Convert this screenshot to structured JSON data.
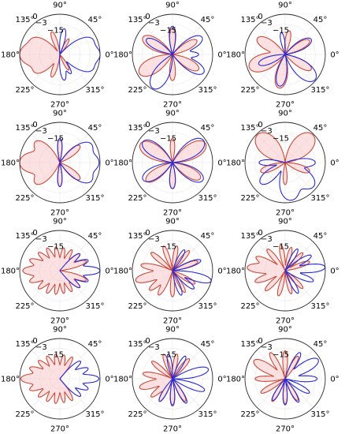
{
  "figure": {
    "angle_tick_labels": [
      "0°",
      "45°",
      "90°",
      "135°",
      "180°",
      "225°",
      "270°",
      "315°"
    ],
    "angle_tick_degrees": [
      0,
      45,
      90,
      135,
      180,
      225,
      270,
      315
    ],
    "radial_tick_labels": [
      "0",
      "−3",
      "−15"
    ],
    "radial_tick_values": [
      0,
      -3,
      -15
    ]
  },
  "colors": {
    "red_series": "#cc4a3a",
    "blue_series": "#2a2ad6",
    "red_fill": "#f7c9c9",
    "axis": "#2b2b2b",
    "grid": "#e6e6e6"
  },
  "chart_data": [
    {
      "type": "polar-line",
      "grid": true,
      "rlim": [
        -40,
        0
      ],
      "series": [
        {
          "color": "red",
          "lobes": [
            [
              180,
              0,
              32
            ],
            [
              215,
              -10,
              22
            ],
            [
              150,
              -10,
              22
            ],
            [
              250,
              -16,
              14
            ],
            [
              110,
              -16,
              14
            ],
            [
              300,
              -22,
              14
            ],
            [
              60,
              -22,
              14
            ]
          ]
        },
        {
          "color": "blue",
          "lobes": [
            [
              0,
              0,
              26
            ],
            [
              335,
              -5,
              20
            ],
            [
              25,
              -5,
              20
            ],
            [
              280,
              -14,
              14
            ],
            [
              80,
              -14,
              14
            ],
            [
              300,
              -18,
              14
            ]
          ]
        }
      ]
    },
    {
      "type": "polar-line",
      "grid": true,
      "rlim": [
        -40,
        0
      ],
      "series": [
        {
          "color": "red",
          "lobes": [
            [
              210,
              -2,
              24
            ],
            [
              150,
              -6,
              22
            ],
            [
              90,
              -14,
              16
            ],
            [
              30,
              -12,
              18
            ],
            [
              330,
              -10,
              20
            ],
            [
              270,
              -14,
              16
            ]
          ]
        },
        {
          "color": "blue",
          "lobes": [
            [
              240,
              -1,
              24
            ],
            [
              330,
              -4,
              20
            ],
            [
              30,
              -6,
              20
            ],
            [
              90,
              -12,
              16
            ],
            [
              150,
              -10,
              18
            ],
            [
              0,
              -14,
              14
            ]
          ]
        }
      ]
    },
    {
      "type": "polar-line",
      "grid": true,
      "rlim": [
        -40,
        0
      ],
      "series": [
        {
          "color": "red",
          "lobes": [
            [
              200,
              -2,
              26
            ],
            [
              150,
              -8,
              22
            ],
            [
              80,
              -16,
              16
            ],
            [
              30,
              -12,
              18
            ],
            [
              330,
              -10,
              18
            ],
            [
              260,
              -6,
              22
            ]
          ]
        },
        {
          "color": "blue",
          "lobes": [
            [
              320,
              -1,
              24
            ],
            [
              30,
              -10,
              20
            ],
            [
              100,
              -18,
              14
            ],
            [
              200,
              -12,
              18
            ],
            [
              260,
              -8,
              20
            ]
          ]
        }
      ]
    },
    {
      "type": "polar-line",
      "grid": true,
      "rlim": [
        -40,
        0
      ],
      "series": [
        {
          "color": "red",
          "lobes": [
            [
              180,
              0,
              30
            ],
            [
              140,
              -8,
              22
            ],
            [
              220,
              -8,
              22
            ],
            [
              90,
              -16,
              14
            ],
            [
              270,
              -16,
              14
            ],
            [
              40,
              -14,
              18
            ],
            [
              320,
              -14,
              18
            ]
          ]
        },
        {
          "color": "blue",
          "lobes": [
            [
              0,
              -1,
              28
            ],
            [
              330,
              -4,
              22
            ],
            [
              30,
              -4,
              22
            ],
            [
              90,
              -16,
              14
            ],
            [
              270,
              -16,
              14
            ]
          ]
        }
      ]
    },
    {
      "type": "polar-line",
      "grid": true,
      "rlim": [
        -40,
        0
      ],
      "series": [
        {
          "color": "red",
          "lobes": [
            [
              150,
              -3,
              24
            ],
            [
              30,
              -2,
              24
            ],
            [
              215,
              -8,
              20
            ],
            [
              330,
              -8,
              20
            ],
            [
              90,
              -16,
              14
            ],
            [
              270,
              -14,
              16
            ]
          ]
        },
        {
          "color": "blue",
          "lobes": [
            [
              35,
              -2,
              24
            ],
            [
              145,
              -4,
              22
            ],
            [
              330,
              -5,
              22
            ],
            [
              210,
              -6,
              22
            ],
            [
              270,
              -14,
              16
            ]
          ]
        }
      ]
    },
    {
      "type": "polar-line",
      "grid": true,
      "rlim": [
        -40,
        0
      ],
      "series": [
        {
          "color": "red",
          "lobes": [
            [
              135,
              -1,
              30
            ],
            [
              45,
              -1,
              30
            ],
            [
              200,
              -14,
              18
            ],
            [
              340,
              -14,
              18
            ],
            [
              270,
              -18,
              14
            ]
          ]
        },
        {
          "color": "blue",
          "lobes": [
            [
              280,
              -2,
              30
            ],
            [
              320,
              -3,
              26
            ],
            [
              220,
              -8,
              22
            ],
            [
              0,
              -10,
              18
            ],
            [
              180,
              -14,
              16
            ]
          ]
        }
      ]
    },
    {
      "type": "polar-line",
      "grid": true,
      "rlim": [
        -40,
        0
      ],
      "series": [
        {
          "color": "red",
          "lobes": [
            [
              180,
              -3,
              14
            ],
            [
              160,
              -8,
              12
            ],
            [
              200,
              -8,
              12
            ],
            [
              140,
              -12,
              12
            ],
            [
              220,
              -12,
              12
            ],
            [
              120,
              -14,
              12
            ],
            [
              240,
              -14,
              12
            ],
            [
              100,
              -16,
              12
            ],
            [
              260,
              -16,
              12
            ],
            [
              80,
              -17,
              12
            ],
            [
              280,
              -17,
              12
            ],
            [
              60,
              -16,
              12
            ],
            [
              300,
              -16,
              12
            ],
            [
              40,
              -14,
              12
            ],
            [
              320,
              -14,
              12
            ],
            [
              20,
              -12,
              12
            ],
            [
              340,
              -12,
              12
            ]
          ]
        },
        {
          "color": "blue",
          "lobes": [
            [
              0,
              0,
              12
            ],
            [
              20,
              -10,
              12
            ],
            [
              340,
              -10,
              12
            ],
            [
              40,
              -14,
              12
            ],
            [
              320,
              -14,
              12
            ]
          ]
        }
      ]
    },
    {
      "type": "polar-line",
      "grid": true,
      "rlim": [
        -40,
        0
      ],
      "series": [
        {
          "color": "red",
          "lobes": [
            [
              195,
              -2,
              14
            ],
            [
              170,
              -8,
              12
            ],
            [
              220,
              -10,
              12
            ],
            [
              140,
              -12,
              12
            ],
            [
              240,
              -12,
              12
            ],
            [
              110,
              -14,
              12
            ],
            [
              270,
              -14,
              12
            ],
            [
              80,
              -15,
              12
            ],
            [
              300,
              -15,
              12
            ],
            [
              50,
              -14,
              12
            ],
            [
              330,
              -14,
              12
            ],
            [
              20,
              -13,
              12
            ]
          ]
        },
        {
          "color": "blue",
          "lobes": [
            [
              345,
              0,
              12
            ],
            [
              20,
              -10,
              12
            ],
            [
              320,
              -12,
              12
            ],
            [
              290,
              -14,
              12
            ],
            [
              60,
              -16,
              12
            ]
          ]
        }
      ]
    },
    {
      "type": "polar-line",
      "grid": true,
      "rlim": [
        -40,
        0
      ],
      "series": [
        {
          "color": "red",
          "lobes": [
            [
              175,
              -2,
              14
            ],
            [
              155,
              -8,
              12
            ],
            [
              200,
              -8,
              12
            ],
            [
              130,
              -12,
              12
            ],
            [
              225,
              -12,
              12
            ],
            [
              100,
              -14,
              12
            ],
            [
              255,
              -14,
              12
            ],
            [
              75,
              -16,
              12
            ],
            [
              285,
              -16,
              12
            ],
            [
              45,
              -15,
              12
            ],
            [
              315,
              -15,
              12
            ],
            [
              20,
              -14,
              12
            ]
          ]
        },
        {
          "color": "blue",
          "lobes": [
            [
              5,
              0,
              12
            ],
            [
              30,
              -10,
              12
            ],
            [
              340,
              -10,
              12
            ],
            [
              300,
              -14,
              12
            ],
            [
              60,
              -15,
              12
            ]
          ]
        }
      ]
    },
    {
      "type": "polar-line",
      "grid": true,
      "rlim": [
        -40,
        0
      ],
      "series": [
        {
          "color": "red",
          "lobes": [
            [
              180,
              -1,
              14
            ],
            [
              160,
              -8,
              12
            ],
            [
              200,
              -8,
              12
            ],
            [
              140,
              -12,
              12
            ],
            [
              220,
              -12,
              12
            ],
            [
              120,
              -14,
              12
            ],
            [
              240,
              -14,
              12
            ],
            [
              100,
              -15,
              12
            ],
            [
              260,
              -15,
              12
            ],
            [
              80,
              -16,
              12
            ],
            [
              280,
              -16,
              12
            ],
            [
              60,
              -15,
              12
            ],
            [
              300,
              -15,
              12
            ]
          ]
        },
        {
          "color": "blue",
          "lobes": [
            [
              0,
              -1,
              12
            ],
            [
              20,
              -10,
              12
            ],
            [
              340,
              -10,
              12
            ],
            [
              40,
              -13,
              12
            ],
            [
              320,
              -13,
              12
            ]
          ]
        }
      ]
    },
    {
      "type": "polar-line",
      "grid": true,
      "rlim": [
        -40,
        0
      ],
      "series": [
        {
          "color": "red",
          "lobes": [
            [
              195,
              -6,
              14
            ],
            [
              170,
              -10,
              12
            ],
            [
              220,
              -12,
              12
            ],
            [
              140,
              -13,
              12
            ],
            [
              240,
              -14,
              12
            ],
            [
              110,
              -14,
              12
            ],
            [
              270,
              -14,
              12
            ],
            [
              80,
              -15,
              12
            ],
            [
              300,
              -14,
              12
            ],
            [
              50,
              -14,
              12
            ]
          ]
        },
        {
          "color": "blue",
          "lobes": [
            [
              15,
              -3,
              14
            ],
            [
              340,
              -6,
              12
            ],
            [
              300,
              -12,
              12
            ],
            [
              270,
              -13,
              12
            ],
            [
              240,
              -14,
              12
            ],
            [
              60,
              -14,
              12
            ],
            [
              100,
              -15,
              12
            ]
          ]
        }
      ]
    },
    {
      "type": "polar-line",
      "grid": true,
      "rlim": [
        -40,
        0
      ],
      "series": [
        {
          "color": "red",
          "lobes": [
            [
              150,
              -4,
              16
            ],
            [
              180,
              -10,
              12
            ],
            [
              120,
              -10,
              12
            ],
            [
              210,
              -12,
              12
            ],
            [
              90,
              -12,
              12
            ],
            [
              240,
              -14,
              12
            ],
            [
              60,
              -14,
              12
            ],
            [
              270,
              -15,
              12
            ],
            [
              300,
              -15,
              12
            ]
          ]
        },
        {
          "color": "blue",
          "lobes": [
            [
              30,
              -2,
              16
            ],
            [
              0,
              -8,
              12
            ],
            [
              60,
              -10,
              12
            ],
            [
              330,
              -12,
              12
            ],
            [
              300,
              -13,
              12
            ],
            [
              270,
              -14,
              12
            ],
            [
              240,
              -15,
              12
            ]
          ]
        }
      ]
    }
  ]
}
